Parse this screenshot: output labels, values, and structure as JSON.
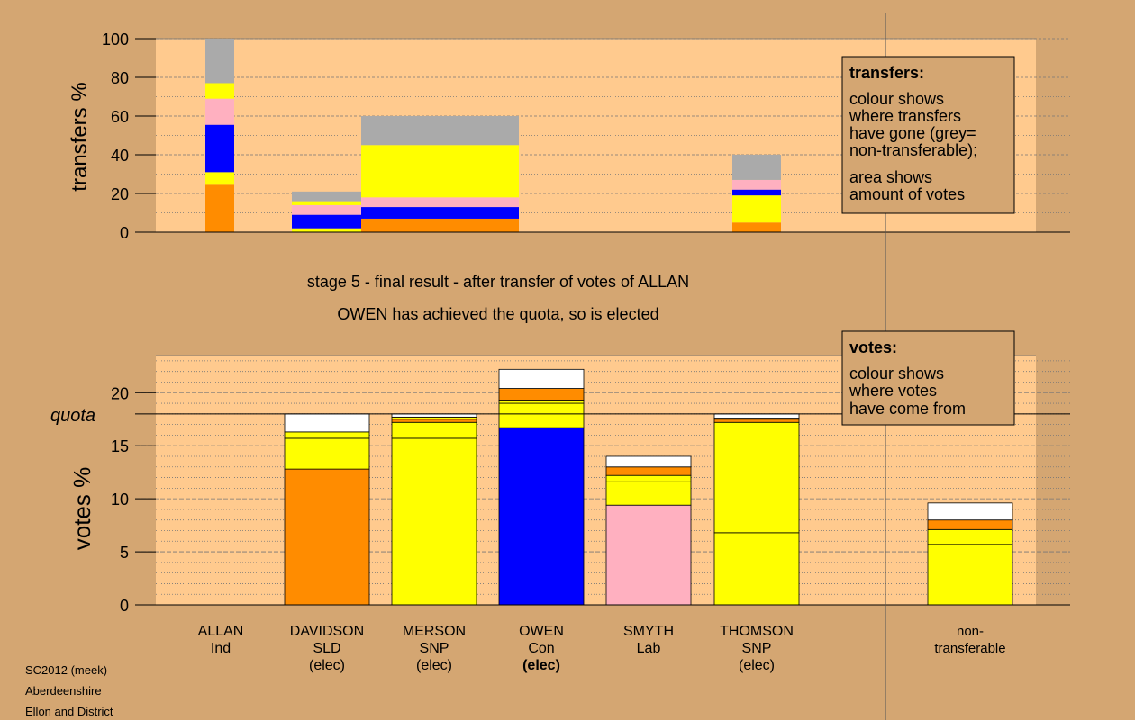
{
  "colors": {
    "background": "#d4a672",
    "plot_area": "#ffca8e",
    "DavidsonSLD": "#ff8c00",
    "SNP": "#ffff00",
    "Con": "#0000ff",
    "Lab": "#ffb0c0",
    "non_transferable": "#aaaaaa",
    "surplus": "#ffffff"
  },
  "stage_title": "stage 5 - final result - after transfer of votes of ALLAN",
  "stage_subtitle": "OWEN has achieved the quota, so is elected",
  "footer": [
    "SC2012 (meek)",
    "Aberdeenshire",
    "Ellon and District"
  ],
  "chart_data": [
    {
      "type": "bar",
      "name": "transfers",
      "ylabel": "transfers %",
      "ylim": [
        0,
        100
      ],
      "yticks": [
        0,
        20,
        40,
        60,
        80,
        100
      ],
      "legend_box": {
        "title": "transfers:",
        "lines": [
          "colour shows",
          "where transfers",
          "have gone (grey=",
          "non-transferable);"
        ],
        "lines2": [
          "area shows",
          "amount of votes"
        ]
      },
      "bars": [
        {
          "candidate": "ALLAN",
          "segments": [
            {
              "color": "#ff8c00",
              "from": 0,
              "to": 24.5
            },
            {
              "color": "#ffff00",
              "from": 24.5,
              "to": 31
            },
            {
              "color": "#0000ff",
              "from": 31,
              "to": 55.5
            },
            {
              "color": "#ffb0c0",
              "from": 55.5,
              "to": 69
            },
            {
              "color": "#ffff00",
              "from": 69,
              "to": 77
            },
            {
              "color": "#aaaaaa",
              "from": 77,
              "to": 100
            }
          ]
        },
        {
          "candidate": "DAVIDSON",
          "segments": [
            {
              "color": "#ffff00",
              "from": 0,
              "to": 2
            },
            {
              "color": "#0000ff",
              "from": 2,
              "to": 9
            },
            {
              "color": "#ffb0c0",
              "from": 9,
              "to": 14
            },
            {
              "color": "#ffff00",
              "from": 14,
              "to": 16
            },
            {
              "color": "#aaaaaa",
              "from": 16,
              "to": 21
            }
          ]
        },
        {
          "candidate": "OWEN",
          "segments": [
            {
              "color": "#ff8c00",
              "from": 0,
              "to": 7
            },
            {
              "color": "#0000ff",
              "from": 7,
              "to": 13
            },
            {
              "color": "#ffb0c0",
              "from": 13,
              "to": 18
            },
            {
              "color": "#ffff00",
              "from": 18,
              "to": 45
            },
            {
              "color": "#aaaaaa",
              "from": 45,
              "to": 60
            }
          ]
        },
        {
          "candidate": "THOMSON",
          "segments": [
            {
              "color": "#ff8c00",
              "from": 0,
              "to": 5
            },
            {
              "color": "#ffff00",
              "from": 5,
              "to": 19
            },
            {
              "color": "#0000ff",
              "from": 19,
              "to": 22
            },
            {
              "color": "#ffb0c0",
              "from": 22,
              "to": 27
            },
            {
              "color": "#aaaaaa",
              "from": 27,
              "to": 40
            }
          ]
        }
      ]
    },
    {
      "type": "bar",
      "name": "votes",
      "ylabel": "votes %",
      "ylim": [
        0,
        23.5
      ],
      "yticks": [
        0,
        5,
        10,
        15,
        20
      ],
      "quota": 18,
      "quota_label": "quota",
      "legend_box": {
        "title": "votes:",
        "lines": [
          "colour shows",
          "where votes",
          "have come from"
        ]
      },
      "categories": [
        {
          "name": "ALLAN",
          "party": "Ind",
          "status": "",
          "bold_status": false
        },
        {
          "name": "DAVIDSON",
          "party": "SLD",
          "status": "(elec)",
          "bold_status": false
        },
        {
          "name": "MERSON",
          "party": "SNP",
          "status": "(elec)",
          "bold_status": false
        },
        {
          "name": "OWEN",
          "party": "Con",
          "status": "(elec)",
          "bold_status": true
        },
        {
          "name": "SMYTH",
          "party": "Lab",
          "status": "",
          "bold_status": false
        },
        {
          "name": "THOMSON",
          "party": "SNP",
          "status": "(elec)",
          "bold_status": false
        },
        {
          "name": "non-",
          "party": "transferable",
          "status": "",
          "bold_status": false
        }
      ],
      "bars": [
        {
          "candidate": "ALLAN",
          "segments": []
        },
        {
          "candidate": "DAVIDSON",
          "segments": [
            {
              "color": "#ff8c00",
              "from": 0,
              "to": 12.8
            },
            {
              "color": "#ffff00",
              "from": 12.8,
              "to": 15.7
            },
            {
              "color": "#ffff00",
              "from": 15.7,
              "to": 16.3
            },
            {
              "color": "#ffffff",
              "from": 16.3,
              "to": 18
            }
          ]
        },
        {
          "candidate": "MERSON",
          "segments": [
            {
              "color": "#ffff00",
              "from": 0,
              "to": 15.7
            },
            {
              "color": "#ffff00",
              "from": 15.7,
              "to": 17.2
            },
            {
              "color": "#ff8c00",
              "from": 17.2,
              "to": 17.5
            },
            {
              "color": "#ffff00",
              "from": 17.5,
              "to": 17.7
            },
            {
              "color": "#ffffff",
              "from": 17.7,
              "to": 18
            }
          ]
        },
        {
          "candidate": "OWEN",
          "segments": [
            {
              "color": "#0000ff",
              "from": 0,
              "to": 16.7
            },
            {
              "color": "#ffff00",
              "from": 16.7,
              "to": 19
            },
            {
              "color": "#ffff00",
              "from": 19,
              "to": 19.3
            },
            {
              "color": "#ff8c00",
              "from": 19.3,
              "to": 20.4
            },
            {
              "color": "#ffffff",
              "from": 20.4,
              "to": 22.2
            }
          ]
        },
        {
          "candidate": "SMYTH",
          "segments": [
            {
              "color": "#ffb0c0",
              "from": 0,
              "to": 9.4
            },
            {
              "color": "#ffff00",
              "from": 9.4,
              "to": 11.6
            },
            {
              "color": "#ffff00",
              "from": 11.6,
              "to": 12.2
            },
            {
              "color": "#ff8c00",
              "from": 12.2,
              "to": 13
            },
            {
              "color": "#ffffff",
              "from": 13,
              "to": 14
            }
          ]
        },
        {
          "candidate": "THOMSON",
          "segments": [
            {
              "color": "#ffff00",
              "from": 0,
              "to": 6.8
            },
            {
              "color": "#ffff00",
              "from": 6.8,
              "to": 17.2
            },
            {
              "color": "#ff8c00",
              "from": 17.2,
              "to": 17.5
            },
            {
              "color": "#ffff00",
              "from": 17.5,
              "to": 17.6
            },
            {
              "color": "#ffffff",
              "from": 17.6,
              "to": 18
            }
          ]
        },
        {
          "candidate": "non-transferable",
          "segments": [
            {
              "color": "#ffff00",
              "from": 0,
              "to": 5.7
            },
            {
              "color": "#ffff00",
              "from": 5.7,
              "to": 7.1
            },
            {
              "color": "#ff8c00",
              "from": 7.1,
              "to": 8
            },
            {
              "color": "#ffffff",
              "from": 8,
              "to": 9.6
            }
          ]
        }
      ]
    }
  ]
}
